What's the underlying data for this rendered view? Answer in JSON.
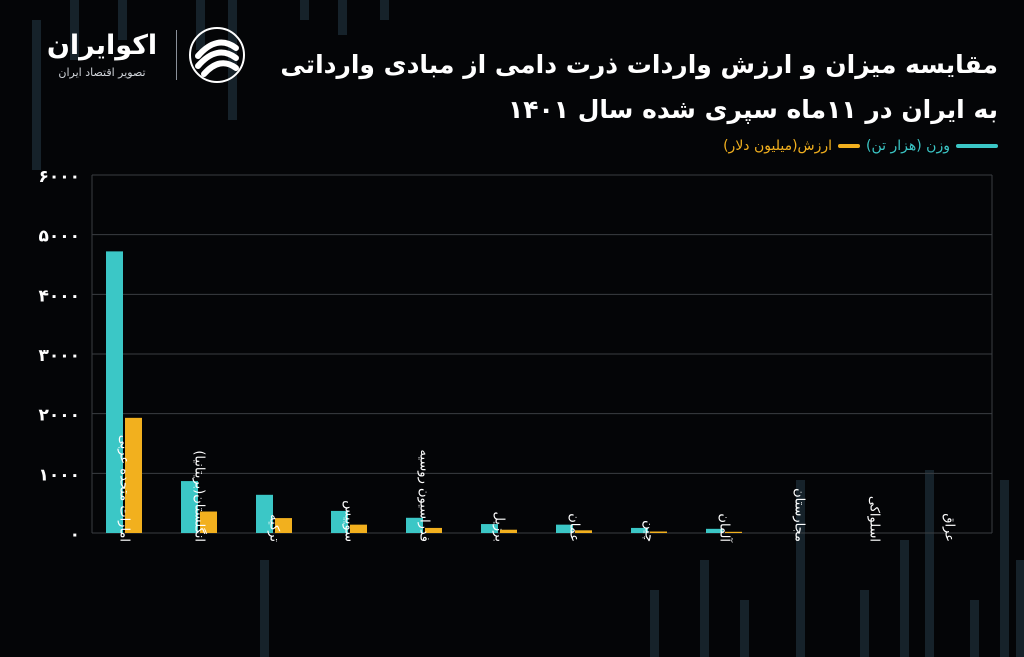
{
  "brand": {
    "name": "اکوایران",
    "tagline": "تصویر اقتصاد ایران"
  },
  "title": "مقایسه میزان  و ارزش  واردات ذرت دامی  از مبادی وارداتی به ایران در ۱۱ماه سپری شده سال ۱۴۰۱",
  "legend": {
    "weight": "وزن (هزار تن)",
    "value": "ارزش(میلیون دلار)"
  },
  "colors": {
    "weight": "#3bc7c6",
    "value": "#f2b01e",
    "background": "#040507",
    "grid": "#3a3d42"
  },
  "chart_data": {
    "type": "bar",
    "categories": [
      "امارات متحده عربی",
      "انگلستان(بریتانیا)",
      "ترکیه",
      "سوییس",
      "فدراسیون روسیه",
      "برزیل",
      "عمان",
      "چین",
      "آلمان",
      "مجارستان",
      "اسلواکی",
      "عراق"
    ],
    "series": [
      {
        "name": "وزن (هزار تن)",
        "values": [
          4720,
          870,
          640,
          370,
          255,
          150,
          140,
          85,
          70,
          0,
          0,
          0
        ]
      },
      {
        "name": "ارزش(میلیون دلار)",
        "values": [
          1930,
          360,
          250,
          140,
          85,
          55,
          45,
          25,
          20,
          0,
          0,
          0
        ]
      }
    ],
    "yticks": [
      "۰",
      "۱۰۰۰",
      "۲۰۰۰",
      "۳۰۰۰",
      "۴۰۰۰",
      "۵۰۰۰",
      "۶۰۰۰"
    ],
    "ylim": [
      0,
      6000
    ],
    "grid": true,
    "legend_position": "top-right"
  }
}
